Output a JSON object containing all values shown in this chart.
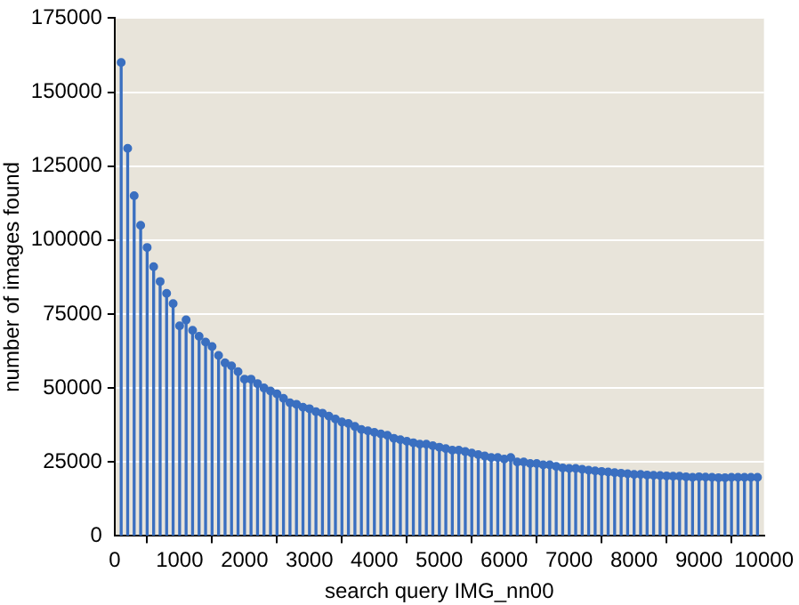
{
  "chart_data": {
    "type": "lollipop",
    "xlabel": "search query IMG_nn00",
    "ylabel": "number of images found",
    "series": [
      {
        "color": "#3a6fc0",
        "x": [
          100,
          200,
          300,
          400,
          500,
          600,
          700,
          800,
          900,
          1000,
          1100,
          1200,
          1300,
          1400,
          1500,
          1600,
          1700,
          1800,
          1900,
          2000,
          2100,
          2200,
          2300,
          2400,
          2500,
          2600,
          2700,
          2800,
          2900,
          3000,
          3100,
          3200,
          3300,
          3400,
          3500,
          3600,
          3700,
          3800,
          3900,
          4000,
          4100,
          4200,
          4300,
          4400,
          4500,
          4600,
          4700,
          4800,
          4900,
          5000,
          5100,
          5200,
          5300,
          5400,
          5500,
          5600,
          5700,
          5800,
          5900,
          6000,
          6100,
          6200,
          6300,
          6400,
          6500,
          6600,
          6700,
          6800,
          6900,
          7000,
          7100,
          7200,
          7300,
          7400,
          7500,
          7600,
          7700,
          7800,
          7900,
          8000,
          8100,
          8200,
          8300,
          8400,
          8500,
          8600,
          8700,
          8800,
          8900,
          9000,
          9100,
          9200,
          9300,
          9400,
          9500,
          9600,
          9700,
          9800,
          9900
        ],
        "values": [
          160000,
          131000,
          115000,
          105000,
          97500,
          91000,
          86000,
          82000,
          78500,
          71000,
          73000,
          69500,
          67500,
          65500,
          64000,
          61000,
          58500,
          57500,
          55500,
          53000,
          53000,
          51500,
          50000,
          49000,
          48000,
          46500,
          45000,
          44500,
          43500,
          43000,
          42000,
          41500,
          40500,
          39500,
          38500,
          38000,
          37000,
          36000,
          35500,
          35000,
          34500,
          34000,
          33000,
          32500,
          32000,
          31500,
          31000,
          31000,
          30500,
          30000,
          29500,
          29000,
          29000,
          28500,
          28000,
          27500,
          27000,
          26500,
          26500,
          26000,
          26500,
          25000,
          25000,
          24500,
          24500,
          24000,
          24000,
          23500,
          23000,
          22800,
          22800,
          22500,
          22200,
          22000,
          21800,
          21600,
          21400,
          21200,
          21000,
          20800,
          20800,
          20600,
          20500,
          20400,
          20300,
          20200,
          20200,
          20000,
          19800,
          20000,
          19900,
          19800,
          19700,
          19700,
          19800,
          19800,
          19800,
          19800,
          19800
        ]
      }
    ],
    "marker": "circle",
    "grid": "y",
    "xlim": [
      0,
      10000
    ],
    "xticks": [
      0,
      1000,
      2000,
      3000,
      4000,
      5000,
      6000,
      7000,
      8000,
      9000,
      10000
    ],
    "ylim": [
      0,
      175000
    ],
    "yticks": [
      0,
      25000,
      50000,
      75000,
      100000,
      125000,
      150000,
      175000
    ]
  }
}
